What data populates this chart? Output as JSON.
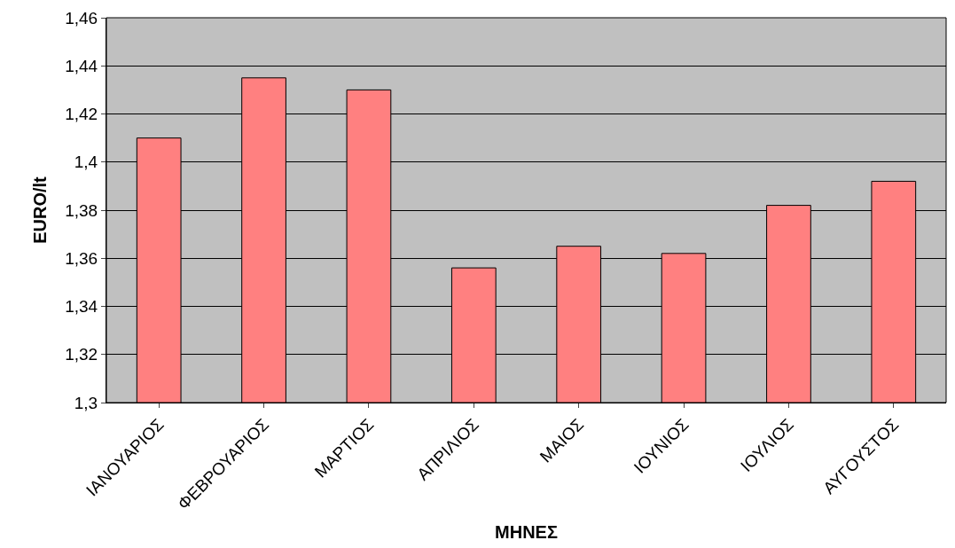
{
  "chart_data": {
    "type": "bar",
    "xlabel": "ΜΗΝΕΣ",
    "ylabel": "EURO/lt",
    "categories": [
      "ΙΑΝΟΥΑΡΙΟΣ",
      "ΦΕΒΡΟΥΑΡΙΟΣ",
      "ΜΑΡΤΙΟΣ",
      "ΑΠΡΙΛΙΟΣ",
      "ΜΑΙΟΣ",
      "ΙΟΥΝΙΟΣ",
      "ΙΟΥΛΙΟΣ",
      "ΑΥΓΟΥΣΤΟΣ"
    ],
    "values": [
      1.41,
      1.435,
      1.43,
      1.356,
      1.365,
      1.362,
      1.382,
      1.392
    ],
    "color": "#ff8080",
    "ylim": [
      1.3,
      1.46
    ],
    "yticks": [
      {
        "value": 1.3,
        "label": "1,3"
      },
      {
        "value": 1.32,
        "label": "1,32"
      },
      {
        "value": 1.34,
        "label": "1,34"
      },
      {
        "value": 1.36,
        "label": "1,36"
      },
      {
        "value": 1.38,
        "label": "1,38"
      },
      {
        "value": 1.4,
        "label": "1,4"
      },
      {
        "value": 1.42,
        "label": "1,42"
      },
      {
        "value": 1.44,
        "label": "1,44"
      },
      {
        "value": 1.46,
        "label": "1,46"
      }
    ],
    "grid": "y",
    "legend": false
  }
}
